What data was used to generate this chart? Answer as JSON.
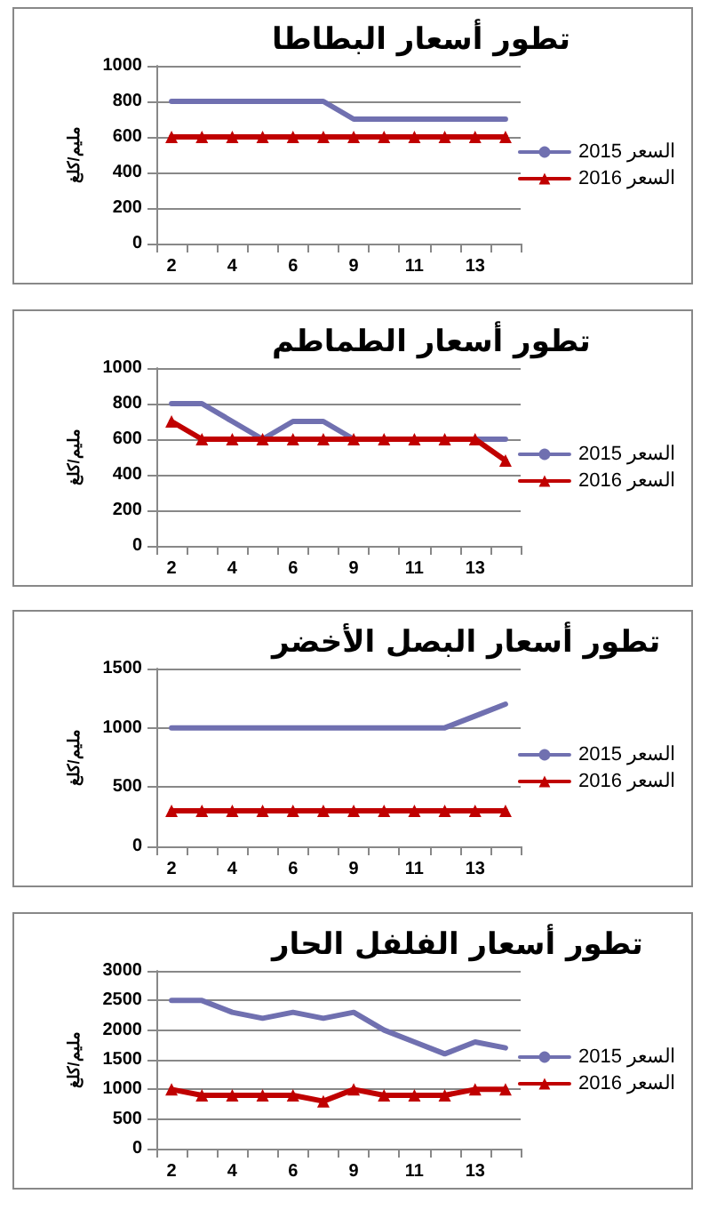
{
  "chart_data": [
    {
      "type": "line",
      "title": "تطور أسعار البطاطا",
      "ylabel": "مليم/كلغ",
      "categories": [
        "2",
        null,
        "4",
        null,
        "6",
        null,
        "9",
        null,
        "11",
        null,
        "13",
        null
      ],
      "ylim": [
        0,
        1000
      ],
      "yticks": [
        0,
        200,
        400,
        600,
        800,
        1000
      ],
      "grid": "y",
      "legend": "right",
      "series": [
        {
          "name": "2015 السعر",
          "color": "#7070b0",
          "marker": "none",
          "values": [
            800,
            800,
            800,
            800,
            800,
            800,
            700,
            700,
            700,
            700,
            700,
            700
          ]
        },
        {
          "name": "2016 السعر",
          "color": "#c00000",
          "marker": "triangle",
          "values": [
            600,
            600,
            600,
            600,
            600,
            600,
            600,
            600,
            600,
            600,
            600,
            600
          ]
        }
      ]
    },
    {
      "type": "line",
      "title": "تطور أسعار الطماطم",
      "ylabel": "مليم/كلغ",
      "categories": [
        "2",
        null,
        "4",
        null,
        "6",
        null,
        "9",
        null,
        "11",
        null,
        "13",
        null
      ],
      "ylim": [
        0,
        1000
      ],
      "yticks": [
        0,
        200,
        400,
        600,
        800,
        1000
      ],
      "grid": "y",
      "legend": "right",
      "series": [
        {
          "name": "2015 السعر",
          "color": "#7070b0",
          "marker": "none",
          "values": [
            800,
            800,
            700,
            600,
            700,
            700,
            600,
            null,
            null,
            null,
            600,
            600
          ]
        },
        {
          "name": "2016 السعر",
          "color": "#c00000",
          "marker": "triangle",
          "values": [
            700,
            600,
            600,
            600,
            600,
            600,
            600,
            600,
            600,
            600,
            600,
            480
          ]
        }
      ]
    },
    {
      "type": "line",
      "title": "تطور أسعار البصل الأخضر",
      "ylabel": "مليم/كلغ",
      "categories": [
        "2",
        null,
        "4",
        null,
        "6",
        null,
        "9",
        null,
        "11",
        null,
        "13",
        null
      ],
      "ylim": [
        0,
        1500
      ],
      "yticks": [
        0,
        500,
        1000,
        1500
      ],
      "grid": "y",
      "legend": "right",
      "series": [
        {
          "name": "2015 السعر",
          "color": "#7070b0",
          "marker": "none",
          "values": [
            1000,
            1000,
            1000,
            1000,
            1000,
            1000,
            1000,
            1000,
            1000,
            1000,
            1100,
            1200
          ]
        },
        {
          "name": "2016 السعر",
          "color": "#c00000",
          "marker": "triangle",
          "values": [
            300,
            300,
            300,
            300,
            300,
            300,
            300,
            300,
            300,
            300,
            300,
            300
          ]
        }
      ]
    },
    {
      "type": "line",
      "title": "تطور أسعار الفلفل الحار",
      "ylabel": "مليم/كلغ",
      "categories": [
        "2",
        null,
        "4",
        null,
        "6",
        null,
        "9",
        null,
        "11",
        null,
        "13",
        null
      ],
      "ylim": [
        0,
        3000
      ],
      "yticks": [
        0,
        500,
        1000,
        1500,
        2000,
        2500,
        3000
      ],
      "grid": "y",
      "legend": "right",
      "series": [
        {
          "name": "2015 السعر",
          "color": "#7070b0",
          "marker": "none",
          "values": [
            2500,
            2500,
            2300,
            2200,
            2300,
            2200,
            2300,
            2000,
            1800,
            1600,
            1800,
            1700
          ]
        },
        {
          "name": "2016 السعر",
          "color": "#c00000",
          "marker": "triangle",
          "values": [
            1000,
            900,
            900,
            900,
            900,
            800,
            1000,
            900,
            900,
            900,
            1000,
            1000
          ]
        }
      ]
    }
  ]
}
